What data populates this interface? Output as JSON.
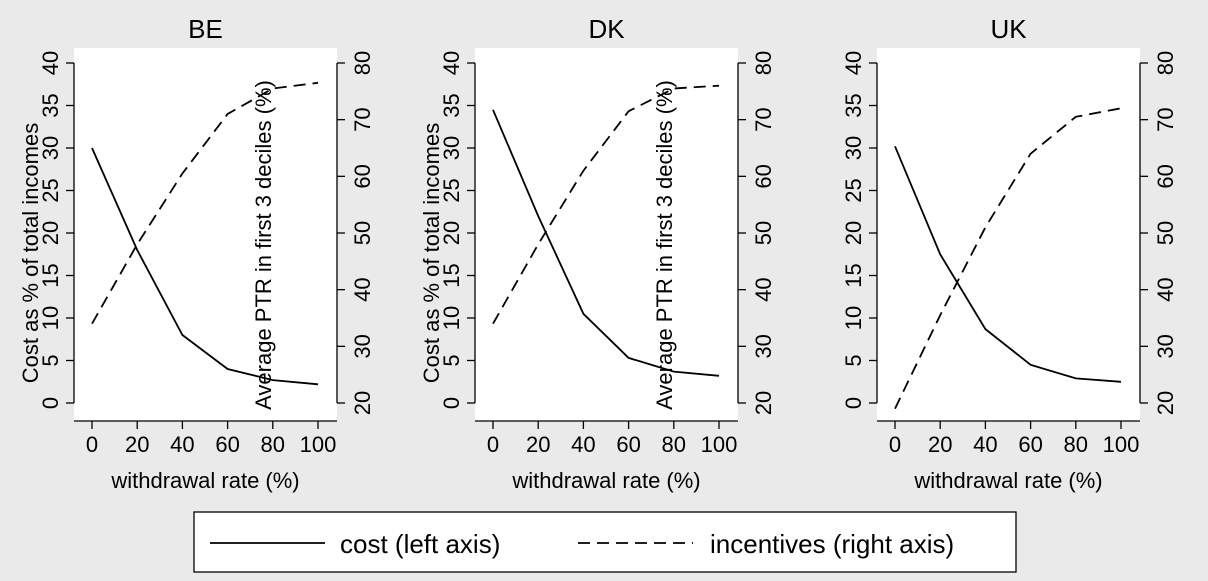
{
  "chart_data": [
    {
      "type": "line",
      "title": "BE",
      "xlabel": "withdrawal rate (%)",
      "ylabel_left": "Cost as % of total incomes",
      "ylabel_right": "Average PTR in first 3 deciles (%)",
      "x": [
        0,
        20,
        40,
        60,
        80,
        100
      ],
      "xticks": [
        "0",
        "20",
        "40",
        "60",
        "80",
        "100"
      ],
      "y_left_ticks": [
        "0",
        "5",
        "10",
        "15",
        "20",
        "25",
        "30",
        "35",
        "40"
      ],
      "y_right_ticks": [
        "20",
        "30",
        "40",
        "50",
        "60",
        "70",
        "80"
      ],
      "ylim_left": [
        0,
        40
      ],
      "ylim_right": [
        20,
        80
      ],
      "series": [
        {
          "name": "cost (left axis)",
          "axis": "left",
          "values": [
            30,
            18,
            8,
            4,
            2.7,
            2.2
          ]
        },
        {
          "name": "incentives (right axis)",
          "axis": "right",
          "values": [
            34,
            48,
            60.5,
            71,
            75.5,
            76.5
          ]
        }
      ]
    },
    {
      "type": "line",
      "title": "DK",
      "xlabel": "withdrawal rate (%)",
      "ylabel_left": "Cost as % of total incomes",
      "ylabel_right": "Average PTR in first 3 deciles (%)",
      "x": [
        0,
        20,
        40,
        60,
        80,
        100
      ],
      "xticks": [
        "0",
        "20",
        "40",
        "60",
        "80",
        "100"
      ],
      "y_left_ticks": [
        "0",
        "5",
        "10",
        "15",
        "20",
        "25",
        "30",
        "35",
        "40"
      ],
      "y_right_ticks": [
        "20",
        "30",
        "40",
        "50",
        "60",
        "70",
        "80"
      ],
      "ylim_left": [
        0,
        40
      ],
      "ylim_right": [
        20,
        80
      ],
      "series": [
        {
          "name": "cost (left axis)",
          "axis": "left",
          "values": [
            34.5,
            22,
            10.5,
            5.3,
            3.7,
            3.2
          ]
        },
        {
          "name": "incentives (right axis)",
          "axis": "right",
          "values": [
            34,
            48,
            61,
            71.5,
            75.5,
            76
          ]
        }
      ]
    },
    {
      "type": "line",
      "title": "UK",
      "xlabel": "withdrawal rate (%)",
      "ylabel_left": "",
      "ylabel_right": "",
      "x": [
        0,
        20,
        40,
        60,
        80,
        100
      ],
      "xticks": [
        "0",
        "20",
        "40",
        "60",
        "80",
        "100"
      ],
      "y_left_ticks": [
        "0",
        "5",
        "10",
        "15",
        "20",
        "25",
        "30",
        "35",
        "40"
      ],
      "y_right_ticks": [
        "20",
        "30",
        "40",
        "50",
        "60",
        "70",
        "80"
      ],
      "ylim_left": [
        0,
        40
      ],
      "ylim_right": [
        20,
        80
      ],
      "series": [
        {
          "name": "cost (left axis)",
          "axis": "left",
          "values": [
            30.2,
            17.5,
            8.7,
            4.5,
            2.9,
            2.5
          ]
        },
        {
          "name": "incentives (right axis)",
          "axis": "right",
          "values": [
            19,
            35.5,
            51,
            64,
            70.5,
            72
          ]
        }
      ]
    }
  ],
  "legend": {
    "items": [
      {
        "label": "cost (left axis)",
        "style": "solid"
      },
      {
        "label": "incentives (right axis)",
        "style": "dashed"
      }
    ]
  },
  "colors": {
    "background": "#eaeaea",
    "plot_background": "#ffffff",
    "line": "#000000"
  }
}
